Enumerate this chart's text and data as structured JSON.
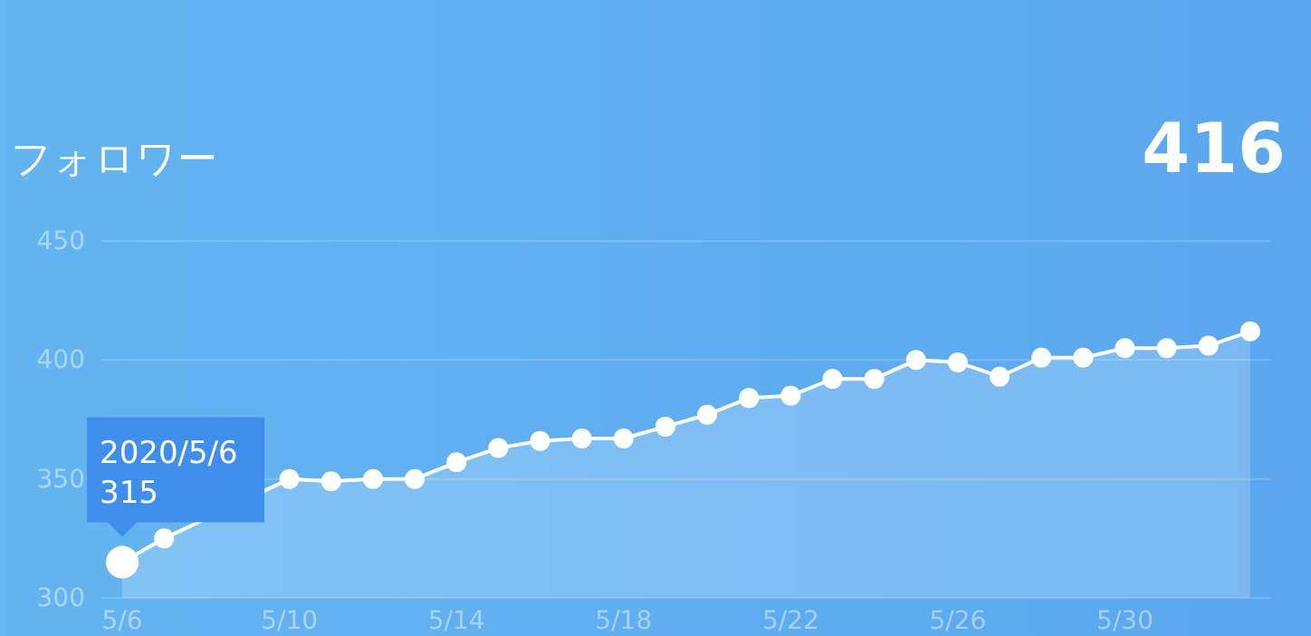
{
  "chart_data": {
    "type": "area",
    "title": "フォロワー",
    "x": [
      "2020-05-06",
      "2020-05-07",
      "2020-05-08",
      "2020-05-09",
      "2020-05-10",
      "2020-05-11",
      "2020-05-12",
      "2020-05-13",
      "2020-05-14",
      "2020-05-15",
      "2020-05-16",
      "2020-05-17",
      "2020-05-18",
      "2020-05-19",
      "2020-05-20",
      "2020-05-21",
      "2020-05-22",
      "2020-05-23",
      "2020-05-24",
      "2020-05-25",
      "2020-05-26",
      "2020-05-27",
      "2020-05-28",
      "2020-05-29",
      "2020-05-30",
      "2020-05-31",
      "2020-06-01",
      "2020-06-02"
    ],
    "series": [
      {
        "color": "#ffffff",
        "values": [
          315,
          325,
          null,
          null,
          350,
          349,
          350,
          350,
          357,
          363,
          366,
          367,
          367,
          372,
          377,
          384,
          385,
          392,
          392,
          400,
          399,
          393,
          401,
          401,
          405,
          405,
          406,
          412
        ]
      }
    ],
    "xlim": [
      "2020-05-05T12:00",
      "2020-06-02T12:00"
    ],
    "xticks": [
      {
        "value": "2020-05-06",
        "label": "5/6"
      },
      {
        "value": "2020-05-10",
        "label": "5/10"
      },
      {
        "value": "2020-05-14",
        "label": "5/14"
      },
      {
        "value": "2020-05-18",
        "label": "5/18"
      },
      {
        "value": "2020-05-22",
        "label": "5/22"
      },
      {
        "value": "2020-05-26",
        "label": "5/26"
      },
      {
        "value": "2020-05-30",
        "label": "5/30"
      }
    ],
    "ylim": [
      300,
      450
    ],
    "yticks": [
      300,
      350,
      400,
      450
    ],
    "grid": "y",
    "marker": "circle",
    "annotations": [
      "416",
      {
        "text": "2020/5/6\n315",
        "x": "2020-05-06",
        "y": 315
      }
    ]
  }
}
